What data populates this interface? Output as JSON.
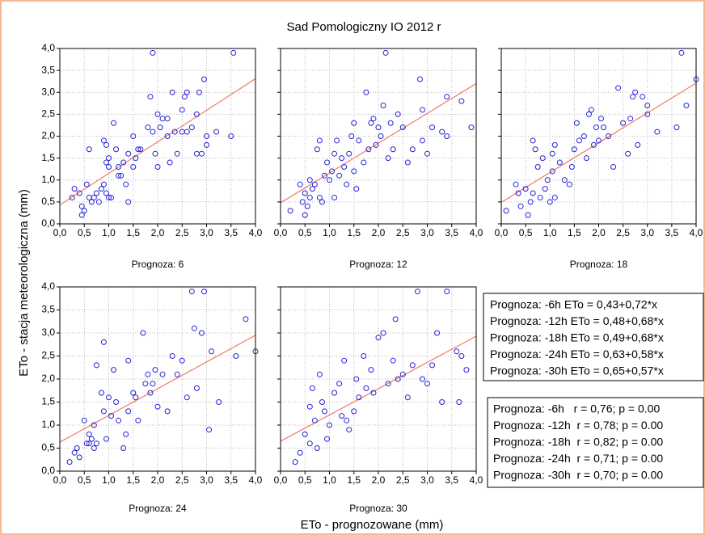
{
  "title": "Sad Pomologiczny IO 2012 r",
  "xlabel": "ETo - prognozowane (mm)",
  "ylabel": "ETo - stacja meteorologiczna (mm)",
  "equations": [
    "Prognoza: -6h ETo = 0,43+0,72*x",
    "Prognoza: -12h ETo = 0,48+0,68*x",
    "Prognoza: -18h ETo = 0,49+0,68*x",
    "Prognoza: -24h ETo = 0,63+0,58*x",
    "Prognoza: -30h ETo = 0,65+0,57*x"
  ],
  "stats": [
    "Prognoza: -6h   r = 0,76; p = 0.00",
    "Prognoza: -12h  r = 0,78; p = 0.00",
    "Prognoza: -18h  r = 0,82; p = 0.00",
    "Prognoza: -24h  r = 0,71; p = 0.00",
    "Prognoza: -30h  r = 0,70; p = 0.00"
  ],
  "chart_data": [
    {
      "type": "scatter",
      "subtitle": "Prognoza: 6",
      "color": "#2323d6",
      "grid": true,
      "ytick_labels": true,
      "trend": {
        "intercept": 0.43,
        "slope": 0.72,
        "color": "#f07a62"
      },
      "x": [
        0.25,
        0.3,
        0.4,
        0.45,
        0.5,
        0.45,
        0.55,
        0.6,
        0.6,
        0.65,
        0.7,
        0.75,
        0.8,
        0.85,
        0.9,
        0.9,
        0.95,
        0.95,
        1.0,
        1.0,
        0.95,
        1.0,
        1.05,
        1.1,
        1.15,
        1.2,
        1.2,
        1.25,
        1.3,
        1.35,
        1.4,
        1.4,
        1.5,
        1.5,
        1.55,
        1.6,
        1.65,
        1.8,
        1.85,
        1.9,
        1.9,
        1.95,
        2.0,
        2.0,
        2.05,
        2.1,
        2.2,
        2.2,
        2.25,
        2.3,
        2.35,
        2.4,
        2.5,
        2.5,
        2.55,
        2.6,
        2.6,
        2.7,
        2.8,
        2.8,
        2.85,
        2.9,
        2.95,
        3.0,
        3.0,
        3.2,
        3.5,
        3.55
      ],
      "y": [
        0.6,
        0.8,
        0.7,
        0.4,
        0.3,
        0.2,
        0.9,
        1.7,
        0.6,
        0.5,
        0.6,
        0.7,
        0.5,
        0.8,
        1.9,
        0.9,
        1.8,
        1.4,
        1.5,
        1.3,
        0.7,
        0.6,
        0.6,
        2.3,
        1.7,
        1.3,
        1.1,
        1.1,
        1.4,
        0.9,
        1.6,
        0.5,
        2.0,
        1.3,
        1.5,
        1.7,
        1.7,
        2.2,
        2.9,
        3.9,
        2.1,
        1.6,
        2.5,
        1.3,
        2.2,
        2.4,
        2.4,
        2.0,
        1.4,
        3.0,
        2.1,
        1.6,
        2.6,
        2.1,
        2.9,
        3.0,
        2.1,
        2.2,
        2.5,
        1.6,
        3.0,
        1.6,
        3.3,
        2.0,
        1.8,
        2.1,
        2.0,
        3.9
      ],
      "xlim": [
        0,
        4
      ],
      "ylim": [
        0,
        4
      ],
      "xticks": [
        {
          "value": 0,
          "label": "0,0"
        },
        {
          "value": 0.5,
          "label": "0,5"
        },
        {
          "value": 1,
          "label": "1,0"
        },
        {
          "value": 1.5,
          "label": "1,5"
        },
        {
          "value": 2,
          "label": "2,0"
        },
        {
          "value": 2.5,
          "label": "2,5"
        },
        {
          "value": 3,
          "label": "3,0"
        },
        {
          "value": 3.5,
          "label": "3,5"
        },
        {
          "value": 4,
          "label": "4,0"
        }
      ],
      "yticks": [
        {
          "value": 0,
          "label": "0,0"
        },
        {
          "value": 0.5,
          "label": "0,5"
        },
        {
          "value": 1,
          "label": "1,0"
        },
        {
          "value": 1.5,
          "label": "1,5"
        },
        {
          "value": 2,
          "label": "2,0"
        },
        {
          "value": 2.5,
          "label": "2,5"
        },
        {
          "value": 3,
          "label": "3,0"
        },
        {
          "value": 3.5,
          "label": "3,5"
        },
        {
          "value": 4,
          "label": "4,0"
        }
      ]
    },
    {
      "type": "scatter",
      "subtitle": "Prognoza: 12",
      "color": "#2323d6",
      "grid": true,
      "ytick_labels": false,
      "trend": {
        "intercept": 0.48,
        "slope": 0.68,
        "color": "#f07a62"
      },
      "x": [
        0.2,
        0.4,
        0.45,
        0.5,
        0.5,
        0.55,
        0.6,
        0.6,
        0.65,
        0.7,
        0.75,
        0.8,
        0.8,
        0.85,
        0.9,
        0.95,
        1.0,
        1.05,
        1.1,
        1.1,
        1.15,
        1.2,
        1.25,
        1.3,
        1.35,
        1.4,
        1.45,
        1.5,
        1.5,
        1.55,
        1.6,
        1.7,
        1.75,
        1.8,
        1.85,
        1.9,
        1.95,
        2.0,
        2.05,
        2.1,
        2.15,
        2.2,
        2.25,
        2.3,
        2.4,
        2.5,
        2.6,
        2.7,
        2.85,
        2.9,
        2.9,
        3.0,
        3.1,
        3.3,
        3.4,
        3.4,
        3.7,
        3.9
      ],
      "y": [
        0.3,
        0.9,
        0.5,
        0.2,
        0.7,
        0.4,
        0.6,
        1.0,
        0.8,
        0.9,
        1.7,
        1.9,
        0.6,
        0.5,
        1.1,
        1.4,
        1.0,
        1.2,
        1.6,
        0.6,
        1.9,
        1.1,
        1.5,
        1.3,
        0.9,
        1.6,
        2.0,
        2.3,
        1.2,
        0.8,
        1.9,
        1.4,
        3.0,
        1.7,
        2.3,
        2.4,
        1.8,
        2.2,
        2.0,
        2.7,
        3.9,
        1.5,
        2.3,
        1.7,
        2.5,
        2.2,
        1.4,
        1.7,
        3.3,
        2.6,
        1.9,
        1.6,
        2.2,
        2.1,
        2.9,
        2.0,
        2.8,
        2.2
      ],
      "xlim": [
        0,
        4
      ],
      "ylim": [
        0,
        4
      ],
      "xticks": [
        {
          "value": 0,
          "label": "0,0"
        },
        {
          "value": 0.5,
          "label": "0,5"
        },
        {
          "value": 1,
          "label": "1,0"
        },
        {
          "value": 1.5,
          "label": "1,5"
        },
        {
          "value": 2,
          "label": "2,0"
        },
        {
          "value": 2.5,
          "label": "2,5"
        },
        {
          "value": 3,
          "label": "3,0"
        },
        {
          "value": 3.5,
          "label": "3,5"
        },
        {
          "value": 4,
          "label": "4,0"
        }
      ],
      "yticks": [
        {
          "value": 0,
          "label": "0,0"
        },
        {
          "value": 0.5,
          "label": "0,5"
        },
        {
          "value": 1,
          "label": "1,0"
        },
        {
          "value": 1.5,
          "label": "1,5"
        },
        {
          "value": 2,
          "label": "2,0"
        },
        {
          "value": 2.5,
          "label": "2,5"
        },
        {
          "value": 3,
          "label": "3,0"
        },
        {
          "value": 3.5,
          "label": "3,5"
        },
        {
          "value": 4,
          "label": "4,0"
        }
      ]
    },
    {
      "type": "scatter",
      "subtitle": "Prognoza: 18",
      "color": "#2323d6",
      "grid": true,
      "ytick_labels": false,
      "trend": {
        "intercept": 0.49,
        "slope": 0.68,
        "color": "#f07a62"
      },
      "x": [
        0.1,
        0.3,
        0.35,
        0.4,
        0.5,
        0.55,
        0.6,
        0.65,
        0.65,
        0.7,
        0.75,
        0.8,
        0.85,
        0.9,
        0.95,
        1.0,
        1.05,
        1.05,
        1.1,
        1.1,
        1.2,
        1.3,
        1.4,
        1.45,
        1.5,
        1.55,
        1.6,
        1.7,
        1.75,
        1.8,
        1.85,
        1.9,
        1.95,
        2.0,
        2.05,
        2.1,
        2.2,
        2.3,
        2.4,
        2.5,
        2.6,
        2.65,
        2.7,
        2.75,
        2.8,
        2.9,
        3.0,
        3.0,
        3.2,
        3.6,
        3.7,
        3.8,
        4.0
      ],
      "y": [
        0.3,
        0.9,
        0.7,
        0.4,
        0.8,
        0.2,
        0.5,
        1.9,
        0.7,
        1.7,
        1.3,
        0.6,
        1.5,
        0.8,
        1.0,
        0.5,
        1.6,
        1.2,
        1.8,
        0.6,
        1.4,
        1.0,
        0.9,
        1.3,
        1.7,
        2.3,
        1.9,
        2.0,
        1.5,
        2.5,
        2.6,
        1.8,
        2.2,
        1.9,
        2.4,
        2.2,
        2.0,
        1.3,
        3.1,
        2.3,
        1.6,
        2.4,
        2.9,
        3.0,
        1.8,
        2.9,
        2.7,
        2.5,
        2.1,
        2.2,
        3.9,
        2.7,
        3.3
      ],
      "xlim": [
        0,
        4
      ],
      "ylim": [
        0,
        4
      ],
      "xticks": [
        {
          "value": 0,
          "label": "0,0"
        },
        {
          "value": 0.5,
          "label": "0,5"
        },
        {
          "value": 1,
          "label": "1,0"
        },
        {
          "value": 1.5,
          "label": "1,5"
        },
        {
          "value": 2,
          "label": "2,0"
        },
        {
          "value": 2.5,
          "label": "2,5"
        },
        {
          "value": 3,
          "label": "3,0"
        },
        {
          "value": 3.5,
          "label": "3,5"
        },
        {
          "value": 4,
          "label": "4,0"
        }
      ],
      "yticks": [
        {
          "value": 0,
          "label": "0,0"
        },
        {
          "value": 0.5,
          "label": "0,5"
        },
        {
          "value": 1,
          "label": "1,0"
        },
        {
          "value": 1.5,
          "label": "1,5"
        },
        {
          "value": 2,
          "label": "2,0"
        },
        {
          "value": 2.5,
          "label": "2,5"
        },
        {
          "value": 3,
          "label": "3,0"
        },
        {
          "value": 3.5,
          "label": "3,5"
        },
        {
          "value": 4,
          "label": "4,0"
        }
      ]
    },
    {
      "type": "scatter",
      "subtitle": "Prognoza: 24",
      "color": "#2323d6",
      "grid": true,
      "ytick_labels": true,
      "trend": {
        "intercept": 0.63,
        "slope": 0.58,
        "color": "#f07a62"
      },
      "x": [
        0.2,
        0.3,
        0.35,
        0.4,
        0.5,
        0.55,
        0.6,
        0.6,
        0.65,
        0.7,
        0.7,
        0.75,
        0.75,
        0.85,
        0.9,
        0.9,
        0.95,
        1.0,
        1.05,
        1.1,
        1.15,
        1.2,
        1.3,
        1.35,
        1.4,
        1.4,
        1.5,
        1.55,
        1.6,
        1.7,
        1.75,
        1.8,
        1.85,
        1.9,
        1.95,
        2.0,
        2.1,
        2.2,
        2.3,
        2.4,
        2.5,
        2.6,
        2.7,
        2.75,
        2.8,
        2.9,
        2.95,
        3.05,
        3.1,
        3.25,
        3.6,
        3.8,
        4.0
      ],
      "y": [
        0.2,
        0.4,
        0.5,
        0.3,
        1.1,
        0.6,
        0.6,
        0.8,
        0.7,
        0.5,
        1.0,
        0.6,
        2.3,
        1.7,
        2.8,
        1.3,
        0.7,
        1.6,
        1.2,
        2.2,
        1.5,
        1.1,
        0.5,
        0.8,
        1.3,
        2.4,
        1.7,
        1.6,
        1.1,
        3.0,
        1.9,
        2.1,
        1.7,
        1.9,
        2.2,
        1.4,
        2.1,
        1.3,
        2.5,
        2.1,
        2.4,
        1.6,
        3.9,
        3.1,
        1.8,
        3.0,
        3.9,
        0.9,
        2.6,
        1.5,
        2.5,
        3.3,
        2.6
      ],
      "xlim": [
        0,
        4
      ],
      "ylim": [
        0,
        4
      ],
      "xticks": [
        {
          "value": 0,
          "label": "0,0"
        },
        {
          "value": 0.5,
          "label": "0,5"
        },
        {
          "value": 1,
          "label": "1,0"
        },
        {
          "value": 1.5,
          "label": "1,5"
        },
        {
          "value": 2,
          "label": "2,0"
        },
        {
          "value": 2.5,
          "label": "2,5"
        },
        {
          "value": 3,
          "label": "3,0"
        },
        {
          "value": 3.5,
          "label": "3,5"
        },
        {
          "value": 4,
          "label": "4,0"
        }
      ],
      "yticks": [
        {
          "value": 0,
          "label": "0,0"
        },
        {
          "value": 0.5,
          "label": "0,5"
        },
        {
          "value": 1,
          "label": "1,0"
        },
        {
          "value": 1.5,
          "label": "1,5"
        },
        {
          "value": 2,
          "label": "2,0"
        },
        {
          "value": 2.5,
          "label": "2,5"
        },
        {
          "value": 3,
          "label": "3,0"
        },
        {
          "value": 3.5,
          "label": "3,5"
        },
        {
          "value": 4,
          "label": "4,0"
        }
      ]
    },
    {
      "type": "scatter",
      "subtitle": "Prognoza: 30",
      "color": "#2323d6",
      "grid": true,
      "ytick_labels": false,
      "trend": {
        "intercept": 0.65,
        "slope": 0.57,
        "color": "#f07a62"
      },
      "x": [
        0.3,
        0.4,
        0.5,
        0.6,
        0.6,
        0.65,
        0.7,
        0.75,
        0.8,
        0.85,
        0.9,
        0.95,
        1.0,
        1.1,
        1.2,
        1.25,
        1.3,
        1.35,
        1.4,
        1.5,
        1.55,
        1.6,
        1.7,
        1.75,
        1.85,
        1.9,
        2.0,
        2.1,
        2.2,
        2.3,
        2.35,
        2.4,
        2.5,
        2.6,
        2.7,
        2.8,
        2.9,
        3.0,
        3.1,
        3.2,
        3.3,
        3.4,
        3.6,
        3.65,
        3.7,
        3.8
      ],
      "y": [
        0.2,
        0.4,
        0.8,
        1.4,
        0.6,
        1.8,
        1.1,
        0.5,
        2.1,
        1.5,
        1.3,
        0.7,
        1.0,
        1.7,
        1.9,
        1.2,
        2.4,
        1.1,
        0.9,
        1.3,
        2.0,
        1.6,
        2.5,
        1.8,
        2.2,
        1.7,
        2.9,
        3.0,
        1.9,
        2.4,
        3.3,
        2.0,
        2.1,
        1.6,
        2.3,
        3.9,
        2.0,
        1.9,
        2.3,
        3.0,
        1.5,
        3.9,
        2.6,
        1.5,
        2.5,
        2.2
      ],
      "xlim": [
        0,
        4
      ],
      "ylim": [
        0,
        4
      ],
      "xticks": [
        {
          "value": 0,
          "label": "0,0"
        },
        {
          "value": 0.5,
          "label": "0,5"
        },
        {
          "value": 1,
          "label": "1,0"
        },
        {
          "value": 1.5,
          "label": "1,5"
        },
        {
          "value": 2,
          "label": "2,0"
        },
        {
          "value": 2.5,
          "label": "2,5"
        },
        {
          "value": 3,
          "label": "3,0"
        },
        {
          "value": 3.5,
          "label": "3,5"
        },
        {
          "value": 4,
          "label": "4,0"
        }
      ],
      "yticks": [
        {
          "value": 0,
          "label": "0,0"
        },
        {
          "value": 0.5,
          "label": "0,5"
        },
        {
          "value": 1,
          "label": "1,0"
        },
        {
          "value": 1.5,
          "label": "1,5"
        },
        {
          "value": 2,
          "label": "2,0"
        },
        {
          "value": 2.5,
          "label": "2,5"
        },
        {
          "value": 3,
          "label": "3,0"
        },
        {
          "value": 3.5,
          "label": "3,5"
        },
        {
          "value": 4,
          "label": "4,0"
        }
      ]
    }
  ]
}
